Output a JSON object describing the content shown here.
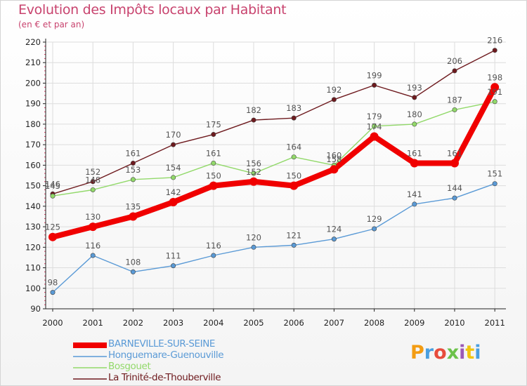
{
  "brand_logo": "Proxiti",
  "colors": {
    "title": "#c8436e",
    "grid": "#dddddd",
    "axis": "#222222",
    "minor_tick": "#e0365f",
    "label": "#555555"
  },
  "chart_data": {
    "type": "line",
    "title": "Evolution des Impôts locaux par Habitant",
    "subtitle": "(en € et par an)",
    "xlabel": "",
    "ylabel": "",
    "ylim": [
      90,
      220
    ],
    "yticks": [
      "90",
      "100",
      "110",
      "120",
      "130",
      "140",
      "150",
      "160",
      "170",
      "180",
      "190",
      "200",
      "210",
      "220"
    ],
    "categories": [
      "2000",
      "2001",
      "2002",
      "2003",
      "2004",
      "2005",
      "2006",
      "2007",
      "2008",
      "2009",
      "2010",
      "2011"
    ],
    "grid": true,
    "legend_position": "bottom-left",
    "series": [
      {
        "name": "La Trinité-de-Thouberville",
        "color": "#6e1a1e",
        "thick": false,
        "values": [
          146,
          152,
          161,
          170,
          175,
          182,
          183,
          192,
          199,
          193,
          206,
          216
        ],
        "labels": [
          "146",
          "152",
          "161",
          "170",
          "175",
          "182",
          "183",
          "192",
          "199",
          "193",
          "206",
          "216"
        ]
      },
      {
        "name": "Bosgouet",
        "color": "#92d96a",
        "thick": false,
        "values": [
          145,
          148,
          153,
          154,
          161,
          156,
          164,
          160,
          179,
          180,
          187,
          191
        ],
        "labels": [
          "145",
          "148",
          "153",
          "154",
          "161",
          "156",
          "164",
          "160",
          "179",
          "180",
          "187",
          "191"
        ]
      },
      {
        "name": "Honguemare-Guenouville",
        "color": "#5a9ad6",
        "thick": false,
        "values": [
          98,
          116,
          108,
          111,
          116,
          120,
          121,
          124,
          129,
          141,
          144,
          151
        ],
        "labels": [
          "98",
          "116",
          "108",
          "111",
          "116",
          "120",
          "121",
          "124",
          "129",
          "141",
          "144",
          "151"
        ]
      },
      {
        "name": "BARNEVILLE-SUR-SEINE",
        "color": "#f00000",
        "thick": true,
        "values": [
          125,
          130,
          135,
          142,
          150,
          152,
          150,
          158,
          174,
          161,
          161,
          198
        ],
        "labels": [
          "125",
          "130",
          "135",
          "142",
          "150",
          "152",
          "150",
          "158",
          "174",
          "161",
          "161",
          "198"
        ]
      }
    ],
    "legend": [
      {
        "name": "BARNEVILLE-SUR-SEINE",
        "color": "#f00000",
        "thick": true
      },
      {
        "name": "Honguemare-Guenouville",
        "color": "#5a9ad6",
        "thick": false
      },
      {
        "name": "Bosgouet",
        "color": "#92d96a",
        "thick": false
      },
      {
        "name": "La Trinité-de-Thouberville",
        "color": "#6e1a1e",
        "thick": false
      }
    ]
  }
}
